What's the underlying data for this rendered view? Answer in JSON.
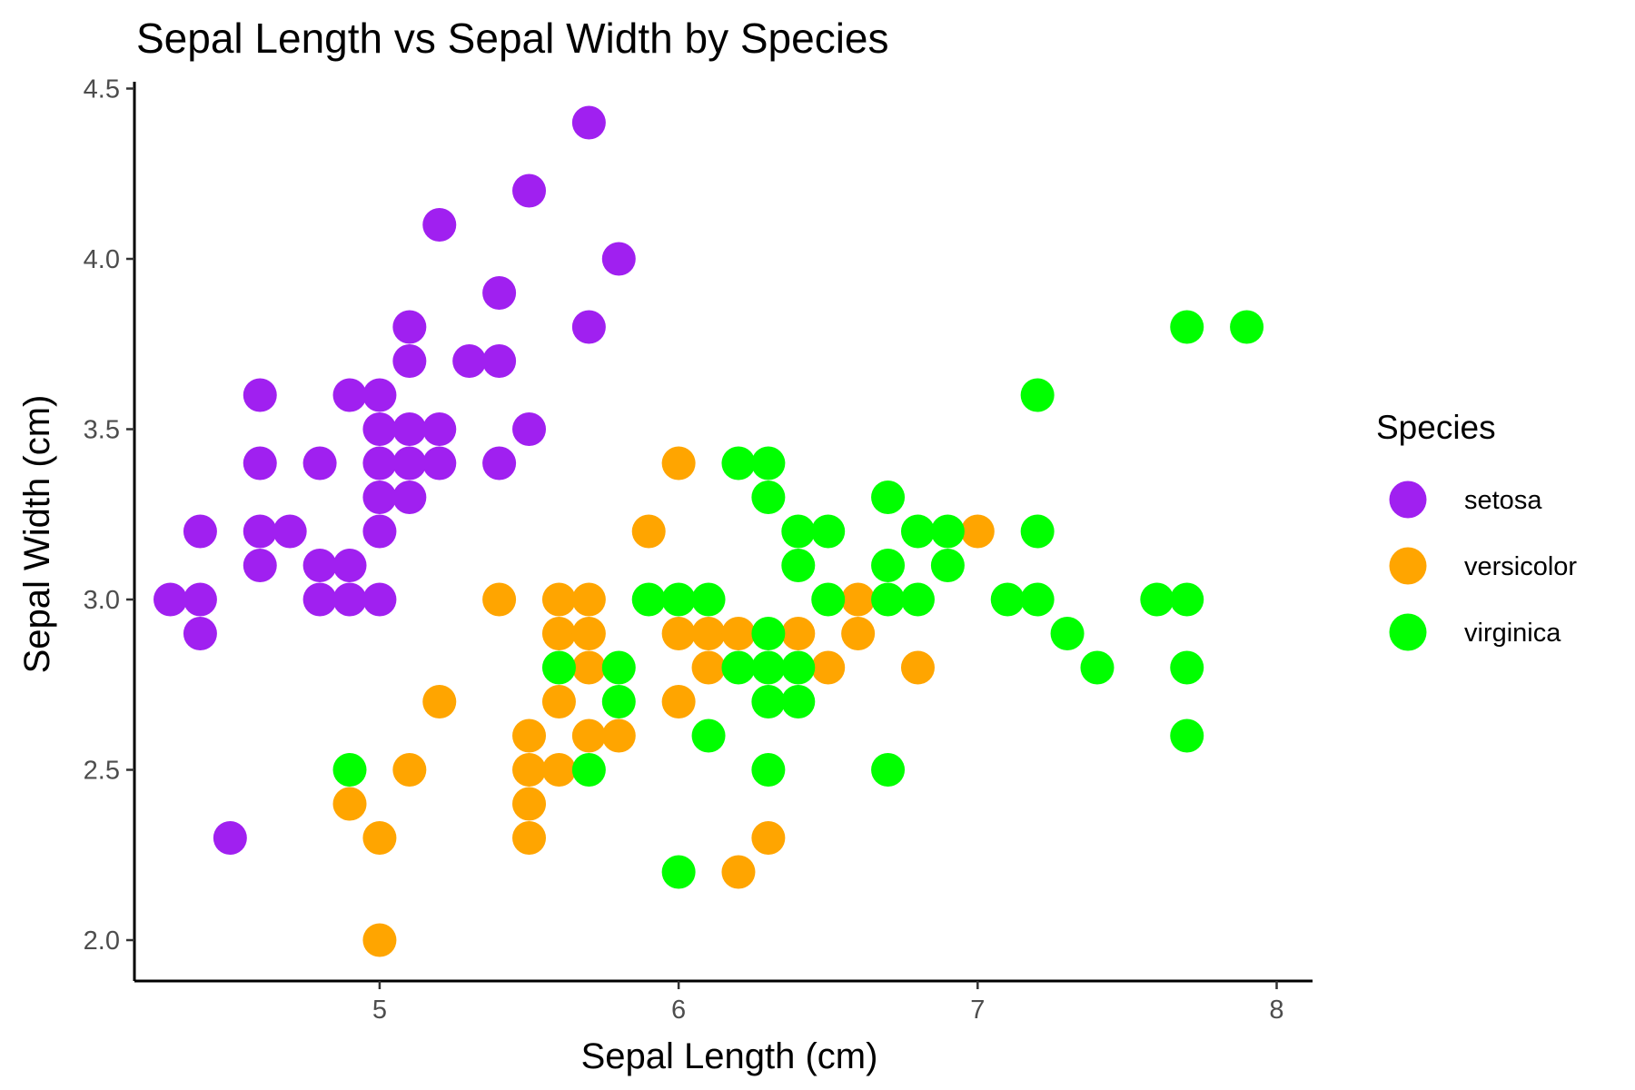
{
  "chart_data": {
    "type": "scatter",
    "title": "Sepal Length vs Sepal Width by Species",
    "xlabel": "Sepal Length (cm)",
    "ylabel": "Sepal Width (cm)",
    "xlim": [
      4.18,
      8.12
    ],
    "ylim": [
      1.88,
      4.52
    ],
    "xticks": [
      5,
      6,
      7,
      8
    ],
    "xtick_labels": [
      "5",
      "6",
      "7",
      "8"
    ],
    "yticks": [
      2.0,
      2.5,
      3.0,
      3.5,
      4.0,
      4.5
    ],
    "ytick_labels": [
      "2.0",
      "2.5",
      "3.0",
      "3.5",
      "4.0",
      "4.5"
    ],
    "grid": false,
    "legend": {
      "title": "Species",
      "position": "right"
    },
    "series": [
      {
        "name": "setosa",
        "color": "#A020F0",
        "points": [
          [
            4.3,
            3.0
          ],
          [
            4.4,
            3.0
          ],
          [
            4.4,
            3.2
          ],
          [
            4.4,
            2.9
          ],
          [
            4.5,
            2.3
          ],
          [
            4.6,
            3.6
          ],
          [
            4.6,
            3.4
          ],
          [
            4.6,
            3.2
          ],
          [
            4.6,
            3.1
          ],
          [
            4.7,
            3.2
          ],
          [
            4.8,
            3.4
          ],
          [
            4.8,
            3.1
          ],
          [
            4.8,
            3.0
          ],
          [
            4.9,
            3.6
          ],
          [
            4.9,
            3.1
          ],
          [
            4.9,
            3.0
          ],
          [
            5.0,
            3.6
          ],
          [
            5.0,
            3.5
          ],
          [
            5.0,
            3.4
          ],
          [
            5.0,
            3.3
          ],
          [
            5.0,
            3.2
          ],
          [
            5.0,
            3.0
          ],
          [
            5.1,
            3.8
          ],
          [
            5.1,
            3.7
          ],
          [
            5.1,
            3.5
          ],
          [
            5.1,
            3.4
          ],
          [
            5.1,
            3.3
          ],
          [
            5.2,
            4.1
          ],
          [
            5.2,
            3.5
          ],
          [
            5.2,
            3.4
          ],
          [
            5.3,
            3.7
          ],
          [
            5.4,
            3.9
          ],
          [
            5.4,
            3.7
          ],
          [
            5.4,
            3.4
          ],
          [
            5.5,
            4.2
          ],
          [
            5.5,
            3.5
          ],
          [
            5.7,
            4.4
          ],
          [
            5.7,
            3.8
          ],
          [
            5.8,
            4.0
          ]
        ]
      },
      {
        "name": "versicolor",
        "color": "#FFA500",
        "points": [
          [
            4.9,
            2.4
          ],
          [
            5.0,
            2.3
          ],
          [
            5.0,
            2.0
          ],
          [
            5.1,
            2.5
          ],
          [
            5.2,
            2.7
          ],
          [
            5.4,
            3.0
          ],
          [
            5.5,
            2.6
          ],
          [
            5.5,
            2.5
          ],
          [
            5.5,
            2.4
          ],
          [
            5.5,
            2.3
          ],
          [
            5.6,
            3.0
          ],
          [
            5.6,
            2.9
          ],
          [
            5.6,
            2.7
          ],
          [
            5.6,
            2.5
          ],
          [
            5.7,
            3.0
          ],
          [
            5.7,
            2.9
          ],
          [
            5.7,
            2.8
          ],
          [
            5.7,
            2.6
          ],
          [
            5.8,
            2.6
          ],
          [
            5.9,
            3.2
          ],
          [
            6.0,
            3.4
          ],
          [
            6.0,
            2.9
          ],
          [
            6.0,
            2.7
          ],
          [
            6.1,
            2.9
          ],
          [
            6.1,
            2.8
          ],
          [
            6.2,
            2.9
          ],
          [
            6.2,
            2.2
          ],
          [
            6.3,
            2.3
          ],
          [
            6.4,
            2.9
          ],
          [
            6.5,
            2.8
          ],
          [
            6.6,
            3.0
          ],
          [
            6.6,
            2.9
          ],
          [
            6.8,
            2.8
          ],
          [
            7.0,
            3.2
          ]
        ]
      },
      {
        "name": "virginica",
        "color": "#00FF00",
        "points": [
          [
            4.9,
            2.5
          ],
          [
            5.6,
            2.8
          ],
          [
            5.7,
            2.5
          ],
          [
            5.8,
            2.8
          ],
          [
            5.8,
            2.7
          ],
          [
            5.9,
            3.0
          ],
          [
            6.0,
            3.0
          ],
          [
            6.0,
            2.2
          ],
          [
            6.1,
            3.0
          ],
          [
            6.1,
            2.6
          ],
          [
            6.2,
            3.4
          ],
          [
            6.2,
            2.8
          ],
          [
            6.3,
            3.4
          ],
          [
            6.3,
            3.3
          ],
          [
            6.3,
            2.9
          ],
          [
            6.3,
            2.8
          ],
          [
            6.3,
            2.7
          ],
          [
            6.3,
            2.5
          ],
          [
            6.4,
            3.2
          ],
          [
            6.4,
            3.1
          ],
          [
            6.4,
            2.8
          ],
          [
            6.4,
            2.7
          ],
          [
            6.5,
            3.2
          ],
          [
            6.5,
            3.0
          ],
          [
            6.7,
            3.3
          ],
          [
            6.7,
            3.1
          ],
          [
            6.7,
            3.0
          ],
          [
            6.7,
            2.5
          ],
          [
            6.8,
            3.2
          ],
          [
            6.8,
            3.0
          ],
          [
            6.9,
            3.2
          ],
          [
            6.9,
            3.1
          ],
          [
            7.1,
            3.0
          ],
          [
            7.2,
            3.6
          ],
          [
            7.2,
            3.2
          ],
          [
            7.2,
            3.0
          ],
          [
            7.3,
            2.9
          ],
          [
            7.4,
            2.8
          ],
          [
            7.6,
            3.0
          ],
          [
            7.7,
            3.8
          ],
          [
            7.7,
            3.0
          ],
          [
            7.7,
            2.8
          ],
          [
            7.7,
            2.6
          ],
          [
            7.9,
            3.8
          ]
        ]
      }
    ]
  }
}
